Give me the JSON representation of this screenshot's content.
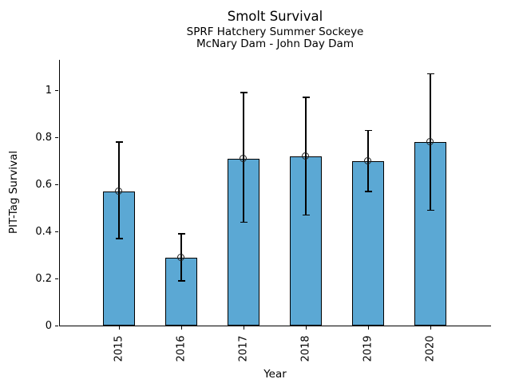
{
  "chart_data": {
    "type": "bar",
    "title": "Smolt Survival",
    "subtitle": [
      "SPRF Hatchery Summer Sockeye",
      "McNary Dam - John Day Dam"
    ],
    "xlabel": "Year",
    "ylabel": "PIT-Tag Survival",
    "categories": [
      "2015",
      "2016",
      "2017",
      "2018",
      "2019",
      "2020"
    ],
    "values": [
      0.57,
      0.29,
      0.71,
      0.72,
      0.7,
      0.78
    ],
    "error_low": [
      0.37,
      0.19,
      0.44,
      0.47,
      0.57,
      0.49
    ],
    "error_high": [
      0.78,
      0.39,
      0.99,
      0.97,
      0.83,
      1.07
    ],
    "ytick_values": [
      0,
      0.2,
      0.4,
      0.6,
      0.8,
      1
    ],
    "ytick_labels": [
      "0",
      "0.2",
      "0.4",
      "0.6",
      "0.8",
      "1"
    ],
    "ylim": [
      0,
      1.13
    ],
    "grid": false,
    "legend": "none",
    "bar_color": "#5BA8D4",
    "bar_edge_color": "#000000",
    "errorbar_color": "#000000",
    "marker": "open-circle"
  }
}
